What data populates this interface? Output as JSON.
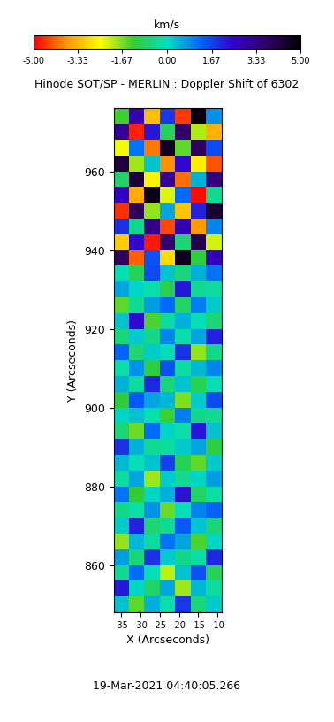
{
  "chart_data": {
    "type": "heatmap",
    "title": "Hinode SOT/SP - MERLIN : Doppler Shift of 6302",
    "x_label": "X (Arcseconds)",
    "y_label": "Y (Arcseconds)",
    "annotation": "19-Mar-2021 04:40:05.266",
    "colorbar_label": "km/s",
    "colorbar_range": [
      -5,
      5
    ],
    "colorbar_ticks": [
      {
        "value": -5,
        "label": "-5.00"
      },
      {
        "value": -3.33,
        "label": "-3.33"
      },
      {
        "value": -1.67,
        "label": "-1.67"
      },
      {
        "value": 0,
        "label": "0.00"
      },
      {
        "value": 1.67,
        "label": "1.67"
      },
      {
        "value": 3.33,
        "label": "3.33"
      },
      {
        "value": 5,
        "label": "5.00"
      }
    ],
    "xlim": [
      -37,
      -9
    ],
    "ylim": [
      848,
      976
    ],
    "xticks": [
      -35,
      -30,
      -25,
      -20,
      -15,
      -10
    ],
    "yticks": [
      860,
      880,
      900,
      920,
      940,
      960
    ],
    "x_edges": [
      -37,
      -33,
      -29,
      -25,
      -21,
      -17,
      -13,
      -9
    ],
    "y_edges": [
      848,
      852,
      856,
      860,
      864,
      868,
      872,
      876,
      880,
      884,
      888,
      892,
      896,
      900,
      904,
      908,
      912,
      916,
      920,
      924,
      928,
      932,
      936,
      940,
      944,
      948,
      952,
      956,
      960,
      964,
      968,
      972,
      976
    ],
    "cells": [
      [
        0.3,
        -1.5,
        0.5,
        -0.2,
        1.8,
        -0.6,
        0.2
      ],
      [
        2.2,
        0.1,
        -0.8,
        0.6,
        -1.9,
        0.4,
        -0.3
      ],
      [
        -0.4,
        1.2,
        -0.1,
        -2.1,
        0.3,
        1.5,
        -0.9
      ],
      [
        0.7,
        -0.6,
        1.9,
        0.2,
        -0.5,
        -0.2,
        2.0
      ],
      [
        -1.8,
        0.4,
        -0.3,
        1.1,
        0.6,
        -1.4,
        0.1
      ],
      [
        0.2,
        2.1,
        -0.7,
        -0.4,
        1.4,
        0.3,
        -0.6
      ],
      [
        -0.5,
        -0.2,
        0.8,
        -1.6,
        -0.1,
        0.9,
        1.3
      ],
      [
        1.1,
        -1.2,
        0.1,
        0.5,
        2.3,
        -0.8,
        -0.2
      ],
      [
        -0.3,
        0.6,
        -1.9,
        0.2,
        -0.4,
        0.1,
        0.7
      ],
      [
        0.4,
        -0.1,
        0.3,
        1.7,
        -0.9,
        -1.5,
        0.2
      ],
      [
        1.9,
        0.5,
        -0.4,
        -0.3,
        0.2,
        0.6,
        -1.1
      ],
      [
        -0.7,
        -1.6,
        1.2,
        0.1,
        -0.2,
        2.2,
        0.3
      ],
      [
        0.1,
        0.3,
        -0.2,
        -1.3,
        1.0,
        -0.5,
        -0.4
      ],
      [
        -1.2,
        1.4,
        0.6,
        0.4,
        -1.7,
        0.2,
        1.6
      ],
      [
        0.5,
        -0.3,
        2.0,
        -0.6,
        0.3,
        -0.9,
        -0.1
      ],
      [
        -0.2,
        0.8,
        -1.1,
        1.5,
        -0.3,
        0.4,
        0.9
      ],
      [
        1.3,
        -0.7,
        0.2,
        -0.1,
        1.9,
        -1.8,
        -0.5
      ],
      [
        -0.6,
        0.2,
        -0.5,
        0.9,
        -0.2,
        0.6,
        2.1
      ],
      [
        0.3,
        2.4,
        -1.4,
        -0.3,
        0.5,
        -0.1,
        -0.7
      ],
      [
        -1.5,
        -0.4,
        0.7,
        1.2,
        -0.8,
        1.0,
        0.2
      ],
      [
        0.6,
        0.1,
        -0.2,
        -1.0,
        2.2,
        -0.4,
        -0.3
      ],
      [
        -0.1,
        -0.9,
        1.6,
        0.3,
        -0.6,
        0.5,
        1.1
      ],
      [
        3.8,
        -4.2,
        1.5,
        -2.9,
        4.6,
        -1.1,
        2.7
      ],
      [
        -3.1,
        2.4,
        -4.8,
        3.6,
        -0.7,
        4.1,
        -2.2
      ],
      [
        1.9,
        -0.5,
        3.3,
        -4.4,
        2.8,
        -3.7,
        0.9
      ],
      [
        -4.6,
        3.9,
        -1.8,
        0.6,
        -3.2,
        2.1,
        4.4
      ],
      [
        2.6,
        -3.5,
        4.7,
        -2.3,
        1.2,
        -4.9,
        -0.4
      ],
      [
        -0.8,
        4.3,
        -2.6,
        3.1,
        -4.1,
        0.5,
        3.5
      ],
      [
        4.2,
        -1.9,
        0.3,
        -3.8,
        2.4,
        -2.7,
        -4.3
      ],
      [
        -2.4,
        1.1,
        -4.0,
        4.5,
        -1.5,
        3.8,
        1.6
      ],
      [
        3.2,
        -4.7,
        2.2,
        -0.9,
        3.7,
        -2.0,
        -3.4
      ],
      [
        -1.3,
        2.9,
        -3.3,
        1.8,
        -4.5,
        4.8,
        0.8
      ]
    ]
  }
}
